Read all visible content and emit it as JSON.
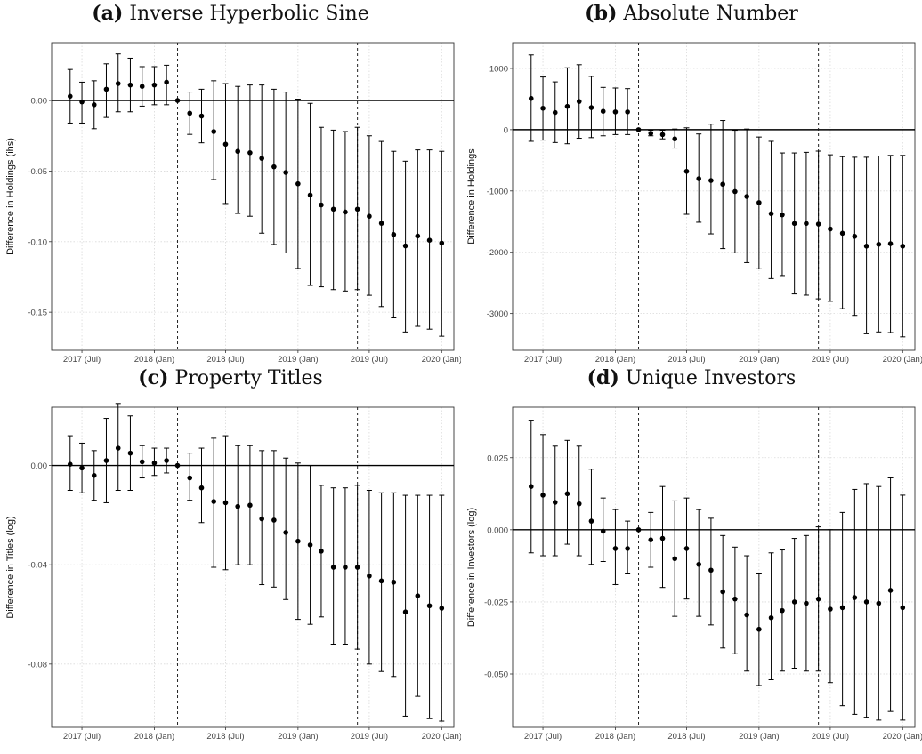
{
  "colors": {
    "marker": "#000000",
    "grid": "#d9d9d9",
    "axis": "#333333"
  },
  "chart_data": [
    {
      "type": "scatter",
      "panel_tag": "(a)",
      "title": "Inverse Hyperbolic Sine",
      "xlabel": "",
      "ylabel": "Difference in Holdings (ihs)",
      "xlim": [
        "2017-04-15",
        "2020-02-01"
      ],
      "ylim": [
        -0.177,
        0.041
      ],
      "yticks": [
        0.0,
        -0.05,
        -0.1,
        -0.15
      ],
      "ytick_labels": [
        "0.00",
        "-0.05",
        "-0.10",
        "-0.15"
      ],
      "xtick_labels": [
        "2017 (Jul)",
        "2018 (Jan)",
        "2018 (Jul)",
        "2019 (Jan)",
        "2019 (Jul)",
        "2020 (Jan)"
      ],
      "reference_line_y": 0,
      "vlines": [
        "2018-03-01",
        "2019-06-01"
      ],
      "grid": true,
      "series": [
        {
          "x": [
            "2017-06-01",
            "2017-07-01",
            "2017-08-01",
            "2017-09-01",
            "2017-10-01",
            "2017-11-01",
            "2017-12-01",
            "2018-01-01",
            "2018-02-01",
            "2018-03-01",
            "2018-04-01",
            "2018-05-01",
            "2018-06-01",
            "2018-07-01",
            "2018-08-01",
            "2018-09-01",
            "2018-10-01",
            "2018-11-01",
            "2018-12-01",
            "2019-01-01",
            "2019-02-01",
            "2019-03-01",
            "2019-04-01",
            "2019-05-01",
            "2019-06-01",
            "2019-07-01",
            "2019-08-01",
            "2019-09-01",
            "2019-10-01",
            "2019-11-01",
            "2019-12-01",
            "2020-01-01"
          ],
          "y": [
            0.003,
            -0.001,
            -0.003,
            0.008,
            0.012,
            0.011,
            0.01,
            0.011,
            0.013,
            0.0,
            -0.009,
            -0.011,
            -0.022,
            -0.031,
            -0.036,
            -0.037,
            -0.041,
            -0.047,
            -0.051,
            -0.059,
            -0.067,
            -0.074,
            -0.077,
            -0.079,
            -0.077,
            -0.082,
            -0.087,
            -0.095,
            -0.103,
            -0.096,
            -0.099,
            -0.101
          ],
          "lo": [
            -0.016,
            -0.016,
            -0.02,
            -0.012,
            -0.008,
            -0.008,
            -0.004,
            -0.003,
            -0.003,
            0.0,
            -0.024,
            -0.03,
            -0.056,
            -0.073,
            -0.08,
            -0.082,
            -0.094,
            -0.102,
            -0.108,
            -0.119,
            -0.131,
            -0.132,
            -0.134,
            -0.135,
            -0.134,
            -0.138,
            -0.146,
            -0.154,
            -0.164,
            -0.16,
            -0.162,
            -0.167
          ],
          "hi": [
            0.022,
            0.013,
            0.014,
            0.026,
            0.033,
            0.03,
            0.024,
            0.024,
            0.025,
            0.0,
            0.006,
            0.008,
            0.014,
            0.012,
            0.01,
            0.011,
            0.011,
            0.008,
            0.006,
            0.001,
            -0.002,
            -0.019,
            -0.021,
            -0.022,
            -0.019,
            -0.025,
            -0.029,
            -0.036,
            -0.043,
            -0.035,
            -0.035,
            -0.036
          ]
        }
      ]
    },
    {
      "type": "scatter",
      "panel_tag": "(b)",
      "title": "Absolute Number",
      "xlabel": "",
      "ylabel": "Difference in Holdings",
      "xlim": [
        "2017-04-15",
        "2020-02-01"
      ],
      "ylim": [
        -3600,
        1420
      ],
      "yticks": [
        1000,
        0,
        -1000,
        -2000,
        -3000
      ],
      "ytick_labels": [
        "1000",
        "0",
        "-1000",
        "-2000",
        "-3000"
      ],
      "xtick_labels": [
        "2017 (Jul)",
        "2018 (Jan)",
        "2018 (Jul)",
        "2019 (Jan)",
        "2019 (Jul)",
        "2020 (Jan)"
      ],
      "reference_line_y": 0,
      "vlines": [
        "2018-03-01",
        "2019-06-01"
      ],
      "grid": true,
      "series": [
        {
          "x": [
            "2017-06-01",
            "2017-07-01",
            "2017-08-01",
            "2017-09-01",
            "2017-10-01",
            "2017-11-01",
            "2017-12-01",
            "2018-01-01",
            "2018-02-01",
            "2018-03-01",
            "2018-04-01",
            "2018-05-01",
            "2018-06-01",
            "2018-07-01",
            "2018-08-01",
            "2018-09-01",
            "2018-10-01",
            "2018-11-01",
            "2018-12-01",
            "2019-01-01",
            "2019-02-01",
            "2019-03-01",
            "2019-04-01",
            "2019-05-01",
            "2019-06-01",
            "2019-07-01",
            "2019-08-01",
            "2019-09-01",
            "2019-10-01",
            "2019-11-01",
            "2019-12-01",
            "2020-01-01"
          ],
          "y": [
            510,
            350,
            280,
            380,
            460,
            360,
            300,
            290,
            290,
            0,
            -60,
            -80,
            -150,
            -680,
            -800,
            -830,
            -890,
            -1010,
            -1090,
            -1190,
            -1370,
            -1390,
            -1530,
            -1530,
            -1540,
            -1620,
            -1690,
            -1740,
            -1900,
            -1870,
            -1860,
            -1900
          ],
          "lo": [
            -190,
            -170,
            -210,
            -230,
            -140,
            -130,
            -100,
            -80,
            -80,
            0,
            -100,
            -150,
            -300,
            -1380,
            -1510,
            -1700,
            -1940,
            -2010,
            -2170,
            -2270,
            -2430,
            -2380,
            -2680,
            -2700,
            -2760,
            -2800,
            -2920,
            -3030,
            -3330,
            -3300,
            -3310,
            -3380
          ],
          "hi": [
            1220,
            860,
            780,
            1010,
            1060,
            870,
            690,
            680,
            670,
            0,
            -10,
            -10,
            10,
            30,
            -70,
            90,
            150,
            -10,
            10,
            -120,
            -190,
            -380,
            -380,
            -370,
            -350,
            -410,
            -440,
            -450,
            -450,
            -430,
            -420,
            -420
          ]
        }
      ]
    },
    {
      "type": "scatter",
      "panel_tag": "(c)",
      "title": "Property Titles",
      "xlabel": "",
      "ylabel": "Difference in Titles (log)",
      "xlim": [
        "2017-04-15",
        "2020-02-01"
      ],
      "ylim": [
        -0.1055,
        0.0235
      ],
      "yticks": [
        0.0,
        -0.04,
        -0.08
      ],
      "ytick_labels": [
        "0.00",
        "-0.04",
        "-0.08"
      ],
      "xtick_labels": [
        "2017 (Jul)",
        "2018 (Jan)",
        "2018 (Jul)",
        "2019 (Jan)",
        "2019 (Jul)",
        "2020 (Jan)"
      ],
      "reference_line_y": 0,
      "vlines": [
        "2018-03-01",
        "2019-06-01"
      ],
      "grid": true,
      "series": [
        {
          "x": [
            "2017-06-01",
            "2017-07-01",
            "2017-08-01",
            "2017-09-01",
            "2017-10-01",
            "2017-11-01",
            "2017-12-01",
            "2018-01-01",
            "2018-02-01",
            "2018-03-01",
            "2018-04-01",
            "2018-05-01",
            "2018-06-01",
            "2018-07-01",
            "2018-08-01",
            "2018-09-01",
            "2018-10-01",
            "2018-11-01",
            "2018-12-01",
            "2019-01-01",
            "2019-02-01",
            "2019-03-01",
            "2019-04-01",
            "2019-05-01",
            "2019-06-01",
            "2019-07-01",
            "2019-08-01",
            "2019-09-01",
            "2019-10-01",
            "2019-11-01",
            "2019-12-01",
            "2020-01-01"
          ],
          "y": [
            0.0005,
            -0.001,
            -0.004,
            0.002,
            0.007,
            0.005,
            0.0015,
            0.001,
            0.002,
            0.0,
            -0.005,
            -0.009,
            -0.0145,
            -0.015,
            -0.0165,
            -0.016,
            -0.0215,
            -0.022,
            -0.027,
            -0.0305,
            -0.032,
            -0.0345,
            -0.041,
            -0.041,
            -0.041,
            -0.0445,
            -0.0465,
            -0.047,
            -0.059,
            -0.0525,
            -0.0565,
            -0.0575
          ],
          "lo": [
            -0.01,
            -0.011,
            -0.014,
            -0.015,
            -0.01,
            -0.01,
            -0.005,
            -0.004,
            -0.003,
            0.0,
            -0.014,
            -0.023,
            -0.041,
            -0.042,
            -0.04,
            -0.04,
            -0.048,
            -0.049,
            -0.054,
            -0.062,
            -0.064,
            -0.061,
            -0.072,
            -0.072,
            -0.074,
            -0.08,
            -0.083,
            -0.085,
            -0.101,
            -0.093,
            -0.102,
            -0.103
          ],
          "hi": [
            0.012,
            0.009,
            0.006,
            0.019,
            0.025,
            0.02,
            0.008,
            0.007,
            0.007,
            0.0,
            0.005,
            0.007,
            0.011,
            0.012,
            0.008,
            0.008,
            0.006,
            0.006,
            0.003,
            0.001,
            0.0,
            -0.008,
            -0.009,
            -0.009,
            -0.008,
            -0.01,
            -0.011,
            -0.011,
            -0.012,
            -0.012,
            -0.012,
            -0.012
          ]
        }
      ]
    },
    {
      "type": "scatter",
      "panel_tag": "(d)",
      "title": "Unique Investors",
      "xlabel": "",
      "ylabel": "Difference in Investors (log)",
      "xlim": [
        "2017-04-15",
        "2020-02-01"
      ],
      "ylim": [
        -0.0685,
        0.0425
      ],
      "yticks": [
        0.025,
        0.0,
        -0.025,
        -0.05
      ],
      "ytick_labels": [
        "0.025",
        "0.000",
        "-0.025",
        "-0.050"
      ],
      "xtick_labels": [
        "2017 (Jul)",
        "2018 (Jan)",
        "2018 (Jul)",
        "2019 (Jan)",
        "2019 (Jul)",
        "2020 (Jan)"
      ],
      "reference_line_y": 0,
      "vlines": [
        "2018-03-01",
        "2019-06-01"
      ],
      "grid": true,
      "series": [
        {
          "x": [
            "2017-06-01",
            "2017-07-01",
            "2017-08-01",
            "2017-09-01",
            "2017-10-01",
            "2017-11-01",
            "2017-12-01",
            "2018-01-01",
            "2018-02-01",
            "2018-03-01",
            "2018-04-01",
            "2018-05-01",
            "2018-06-01",
            "2018-07-01",
            "2018-08-01",
            "2018-09-01",
            "2018-10-01",
            "2018-11-01",
            "2018-12-01",
            "2019-01-01",
            "2019-02-01",
            "2019-03-01",
            "2019-04-01",
            "2019-05-01",
            "2019-06-01",
            "2019-07-01",
            "2019-08-01",
            "2019-09-01",
            "2019-10-01",
            "2019-11-01",
            "2019-12-01",
            "2020-01-01"
          ],
          "y": [
            0.015,
            0.012,
            0.0095,
            0.0125,
            0.009,
            0.003,
            -0.0005,
            -0.0065,
            -0.0065,
            0.0,
            -0.0035,
            -0.003,
            -0.01,
            -0.0065,
            -0.012,
            -0.014,
            -0.0215,
            -0.024,
            -0.0295,
            -0.0345,
            -0.0305,
            -0.028,
            -0.025,
            -0.0255,
            -0.024,
            -0.0275,
            -0.027,
            -0.0235,
            -0.025,
            -0.0255,
            -0.021,
            -0.027
          ],
          "lo": [
            -0.008,
            -0.009,
            -0.009,
            -0.005,
            -0.009,
            -0.012,
            -0.011,
            -0.019,
            -0.015,
            0.0,
            -0.013,
            -0.02,
            -0.03,
            -0.024,
            -0.03,
            -0.033,
            -0.041,
            -0.043,
            -0.049,
            -0.054,
            -0.052,
            -0.049,
            -0.048,
            -0.049,
            -0.049,
            -0.053,
            -0.061,
            -0.064,
            -0.065,
            -0.066,
            -0.063,
            -0.066
          ],
          "hi": [
            0.038,
            0.033,
            0.029,
            0.031,
            0.029,
            0.021,
            0.011,
            0.007,
            0.003,
            0.0,
            0.006,
            0.015,
            0.01,
            0.011,
            0.007,
            0.004,
            -0.002,
            -0.006,
            -0.009,
            -0.015,
            -0.008,
            -0.007,
            -0.003,
            -0.002,
            0.001,
            0.0,
            0.006,
            0.014,
            0.016,
            0.015,
            0.018,
            0.012
          ]
        }
      ]
    }
  ]
}
